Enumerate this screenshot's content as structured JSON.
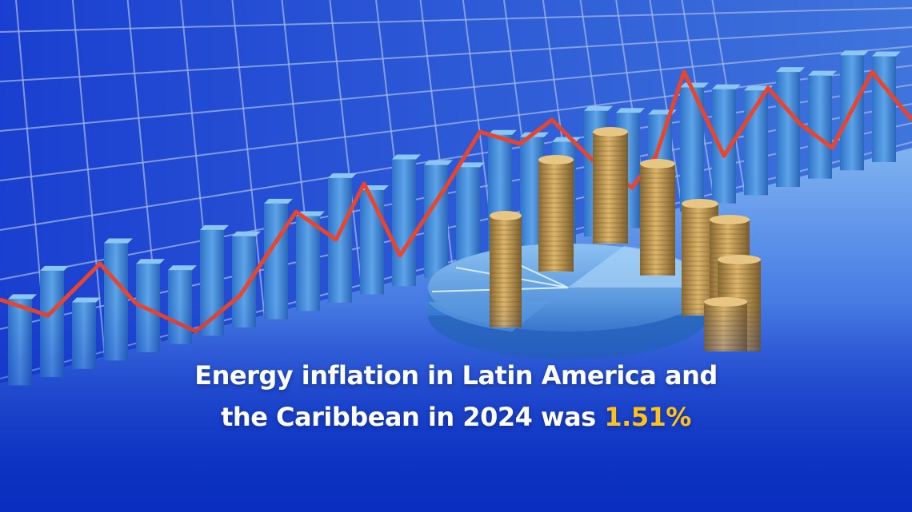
{
  "caption": {
    "line1": "Energy inflation in Latin America and",
    "line2_prefix": "the Caribbean in 2024 was ",
    "highlight_value": "1.51%"
  },
  "colors": {
    "background": "#0a2fbf",
    "grid_panel": "#2a52d8",
    "bar_blue": "#3f86d6",
    "trend_line": "#e8452c",
    "coins": "#c9a256",
    "highlight": "#ffc21a",
    "caption_text": "#ffffff"
  },
  "icons": [
    "3d-bar-chart-image",
    "red-trend-line-image",
    "pie-chart-image",
    "coin-stacks-image"
  ]
}
